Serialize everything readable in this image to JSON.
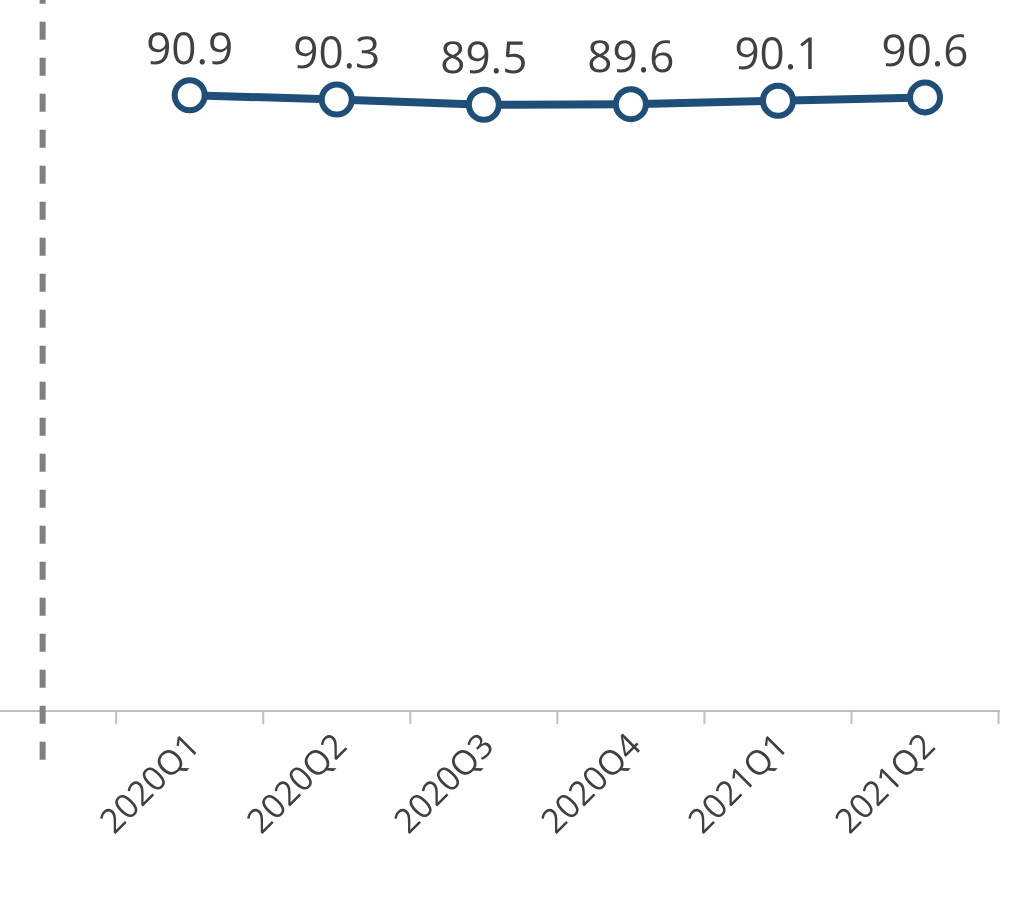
{
  "chart_data": {
    "type": "line",
    "categories": [
      null,
      "2020Q1",
      "2020Q2",
      "2020Q3",
      "2020Q4",
      "2021Q1",
      "2021Q2"
    ],
    "series": [
      {
        "color": "#1f4e79",
        "values": [
          null,
          90.9,
          90.3,
          89.5,
          89.6,
          90.1,
          90.6
        ]
      }
    ],
    "ref_lines": [
      {
        "axis": "x",
        "value": null,
        "color": "#7f7f7f",
        "line_style": "dashed"
      }
    ],
    "data_labels": true,
    "marker": "circle",
    "ylim": [
      0,
      105
    ],
    "tick_labels": "x",
    "legend": false
  }
}
